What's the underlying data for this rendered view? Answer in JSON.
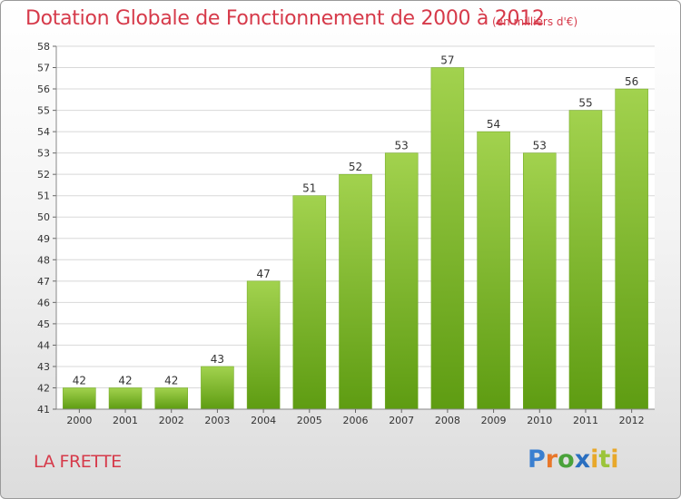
{
  "title": "Dotation Globale de Fonctionnement de 2000 à 2012",
  "unit_note": "(en milliers d'€)",
  "commune": "LA FRETTE",
  "logo": {
    "text": "Proxiti",
    "parts": [
      "P",
      "r",
      "o",
      "x",
      "i",
      "t",
      "i"
    ]
  },
  "colors": {
    "accent": "#d63a4a",
    "bar_light": "#a2d24e",
    "bar_dark": "#5e9c12"
  },
  "chart_data": {
    "type": "bar",
    "title": "Dotation Globale de Fonctionnement de 2000 à 2012",
    "xlabel": "",
    "ylabel": "(en milliers d'€)",
    "categories": [
      "2000",
      "2001",
      "2002",
      "2003",
      "2004",
      "2005",
      "2006",
      "2007",
      "2008",
      "2009",
      "2010",
      "2011",
      "2012"
    ],
    "values": [
      42,
      42,
      42,
      43,
      47,
      51,
      52,
      53,
      57,
      54,
      53,
      55,
      56
    ],
    "ylim": [
      41,
      58
    ],
    "yticks": [
      "41",
      "42",
      "43",
      "44",
      "45",
      "46",
      "47",
      "48",
      "49",
      "50",
      "51",
      "52",
      "53",
      "54",
      "55",
      "56",
      "57",
      "58"
    ],
    "grid": true,
    "legend": "none"
  }
}
